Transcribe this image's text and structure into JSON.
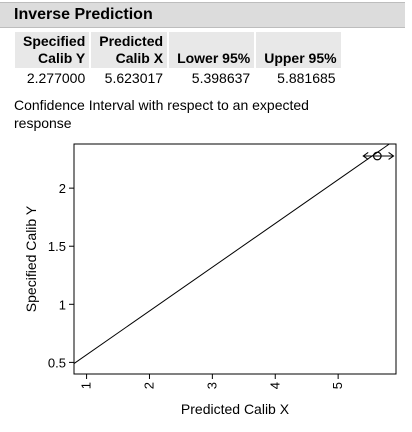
{
  "report": {
    "title": "Inverse Prediction",
    "headers": [
      [
        "Specified",
        "Calib Y"
      ],
      [
        "Predicted",
        "Calib X"
      ],
      [
        "",
        "Lower 95%"
      ],
      [
        "",
        "Upper 95%"
      ]
    ],
    "row": [
      "2.277000",
      "5.623017",
      "5.398637",
      "5.881685"
    ],
    "note": "Confidence Interval with respect to an expected response"
  },
  "chart_data": {
    "type": "line",
    "xlabel": "Predicted Calib X",
    "ylabel": "Specified Calib Y",
    "xlim": [
      0.8,
      5.92
    ],
    "ylim": [
      0.4,
      2.38
    ],
    "xticks": [
      "1",
      "2",
      "3",
      "4",
      "5"
    ],
    "yticks": [
      "0.5",
      "1",
      "1.5",
      "2"
    ],
    "line": {
      "x": [
        0.8,
        5.92
      ],
      "y": [
        0.49,
        2.42
      ]
    },
    "prediction": {
      "x": 5.623017,
      "y": 2.277,
      "lower": 5.398637,
      "upper": 5.881685
    }
  }
}
